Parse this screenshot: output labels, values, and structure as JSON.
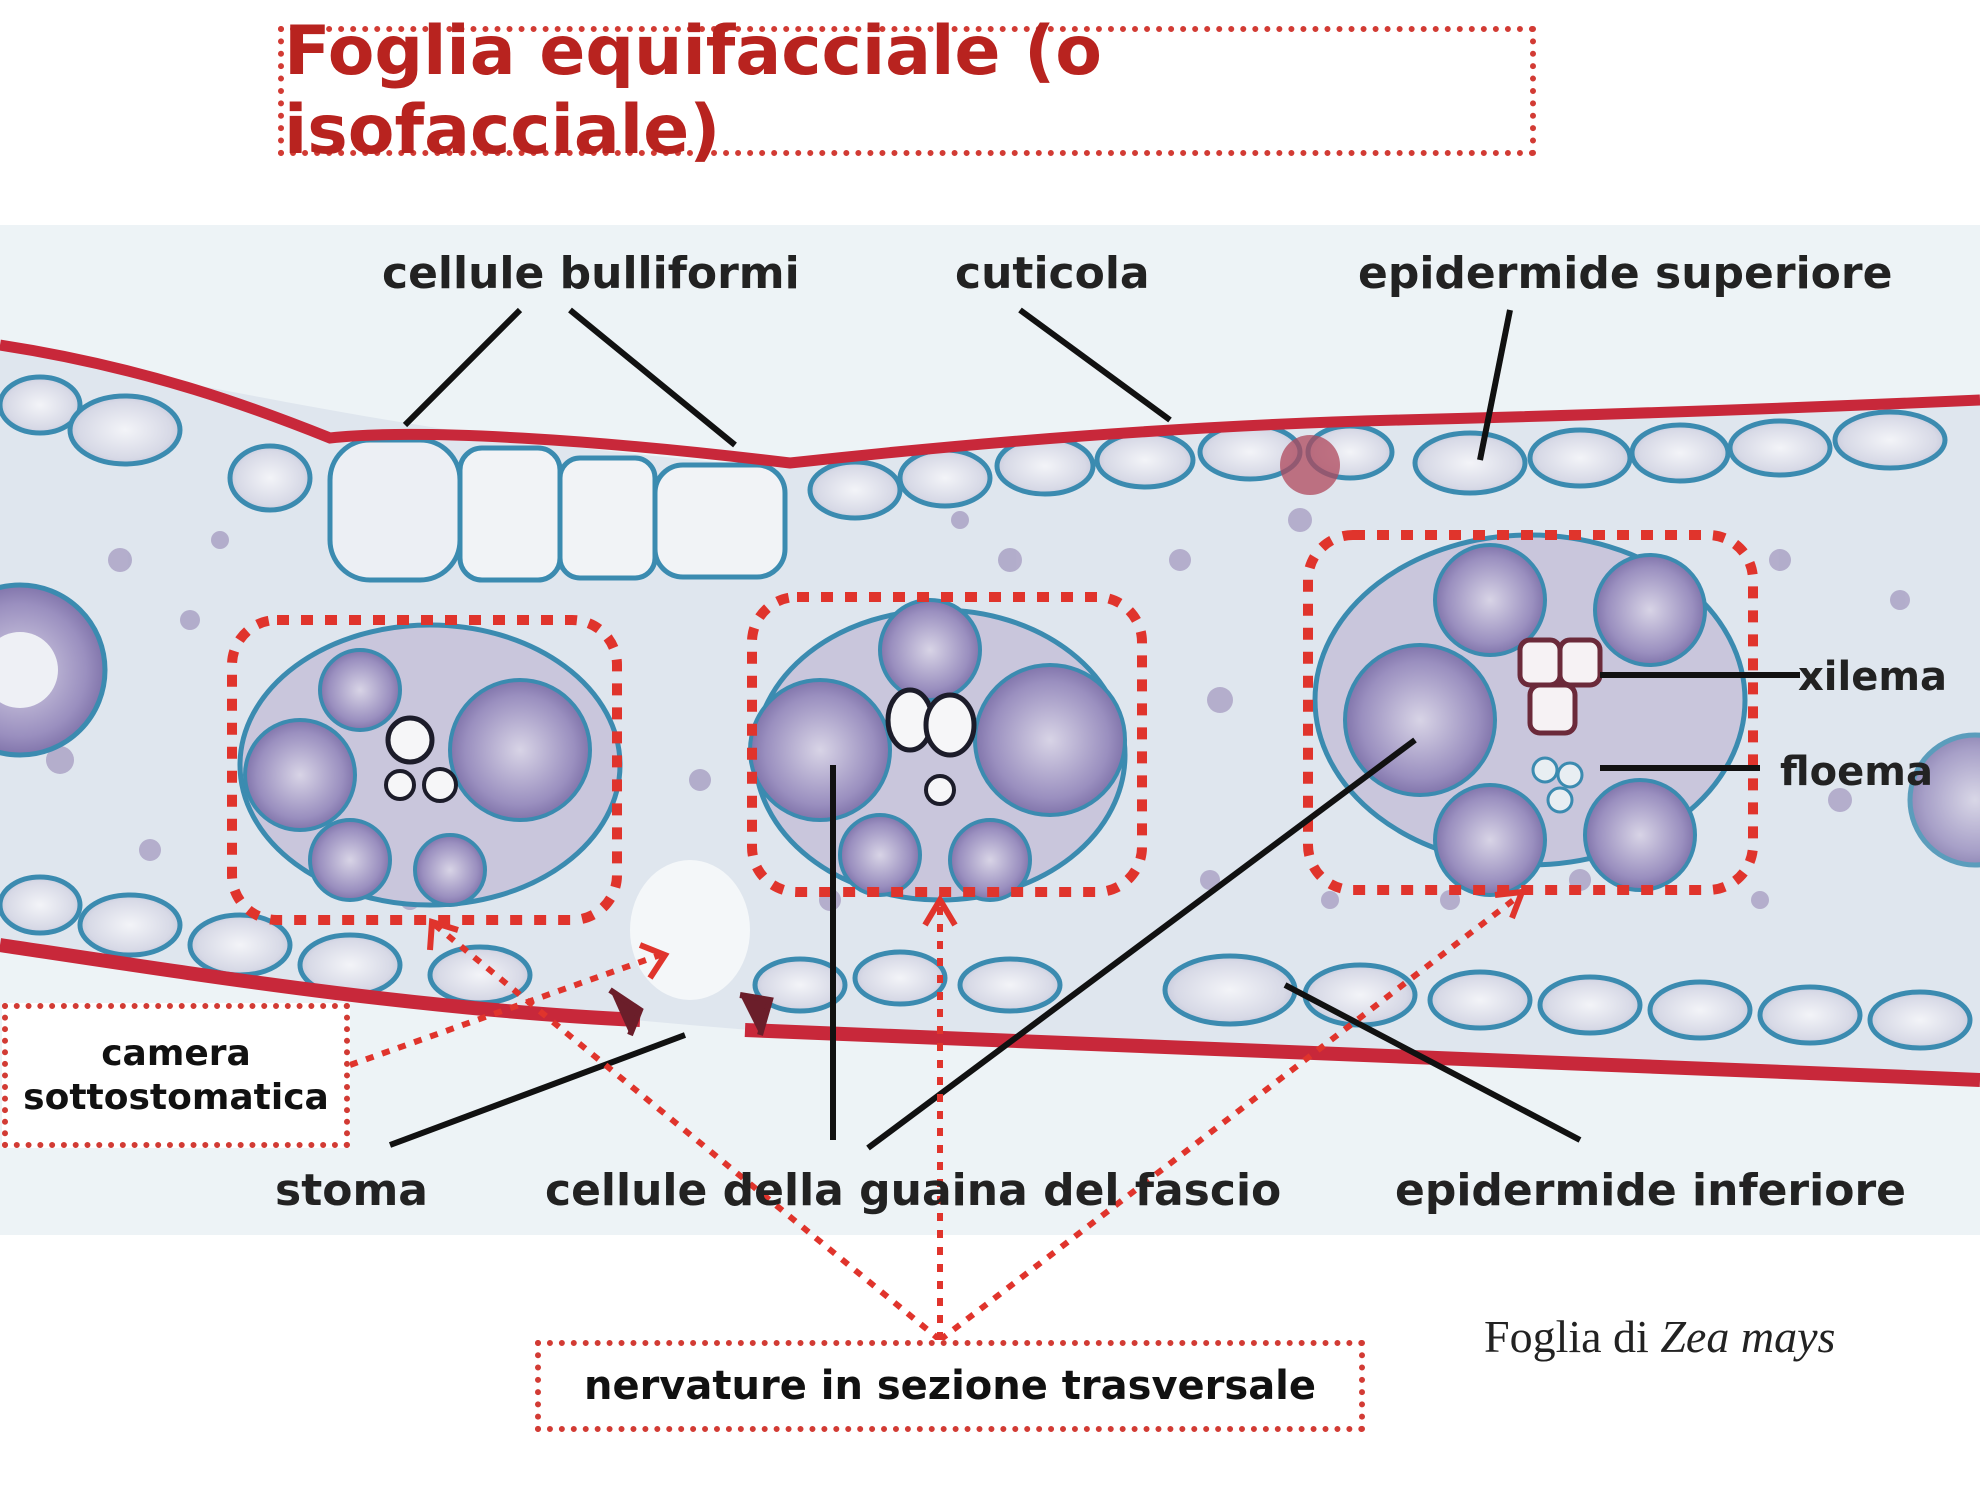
{
  "title": "Foglia equifacciale (o isofacciale)",
  "labels": {
    "cellule_bulliformi": "cellule bulliformi",
    "cuticola": "cuticola",
    "epidermide_superiore": "epidermide superiore",
    "xilema": "xilema",
    "floema": "floema",
    "stoma": "stoma",
    "cellule_guaina": "cellule della guaina del fascio",
    "epidermide_inferiore": "epidermide inferiore"
  },
  "callouts": {
    "camera_sottostomatica_line1": "camera",
    "camera_sottostomatica_line2": "sottostomatica",
    "nervature": "nervature in sezione trasversale"
  },
  "caption": {
    "prefix": "Foglia di",
    "species": "Zea mays"
  },
  "colors": {
    "title_red": "#b8231f",
    "dotted_red": "#d23b34",
    "cuticle_red": "#c8283a",
    "cell_wall_blue": "#3b8bb0",
    "stain_purple": "#6a5590",
    "background_slide": "#e9f1f4"
  }
}
